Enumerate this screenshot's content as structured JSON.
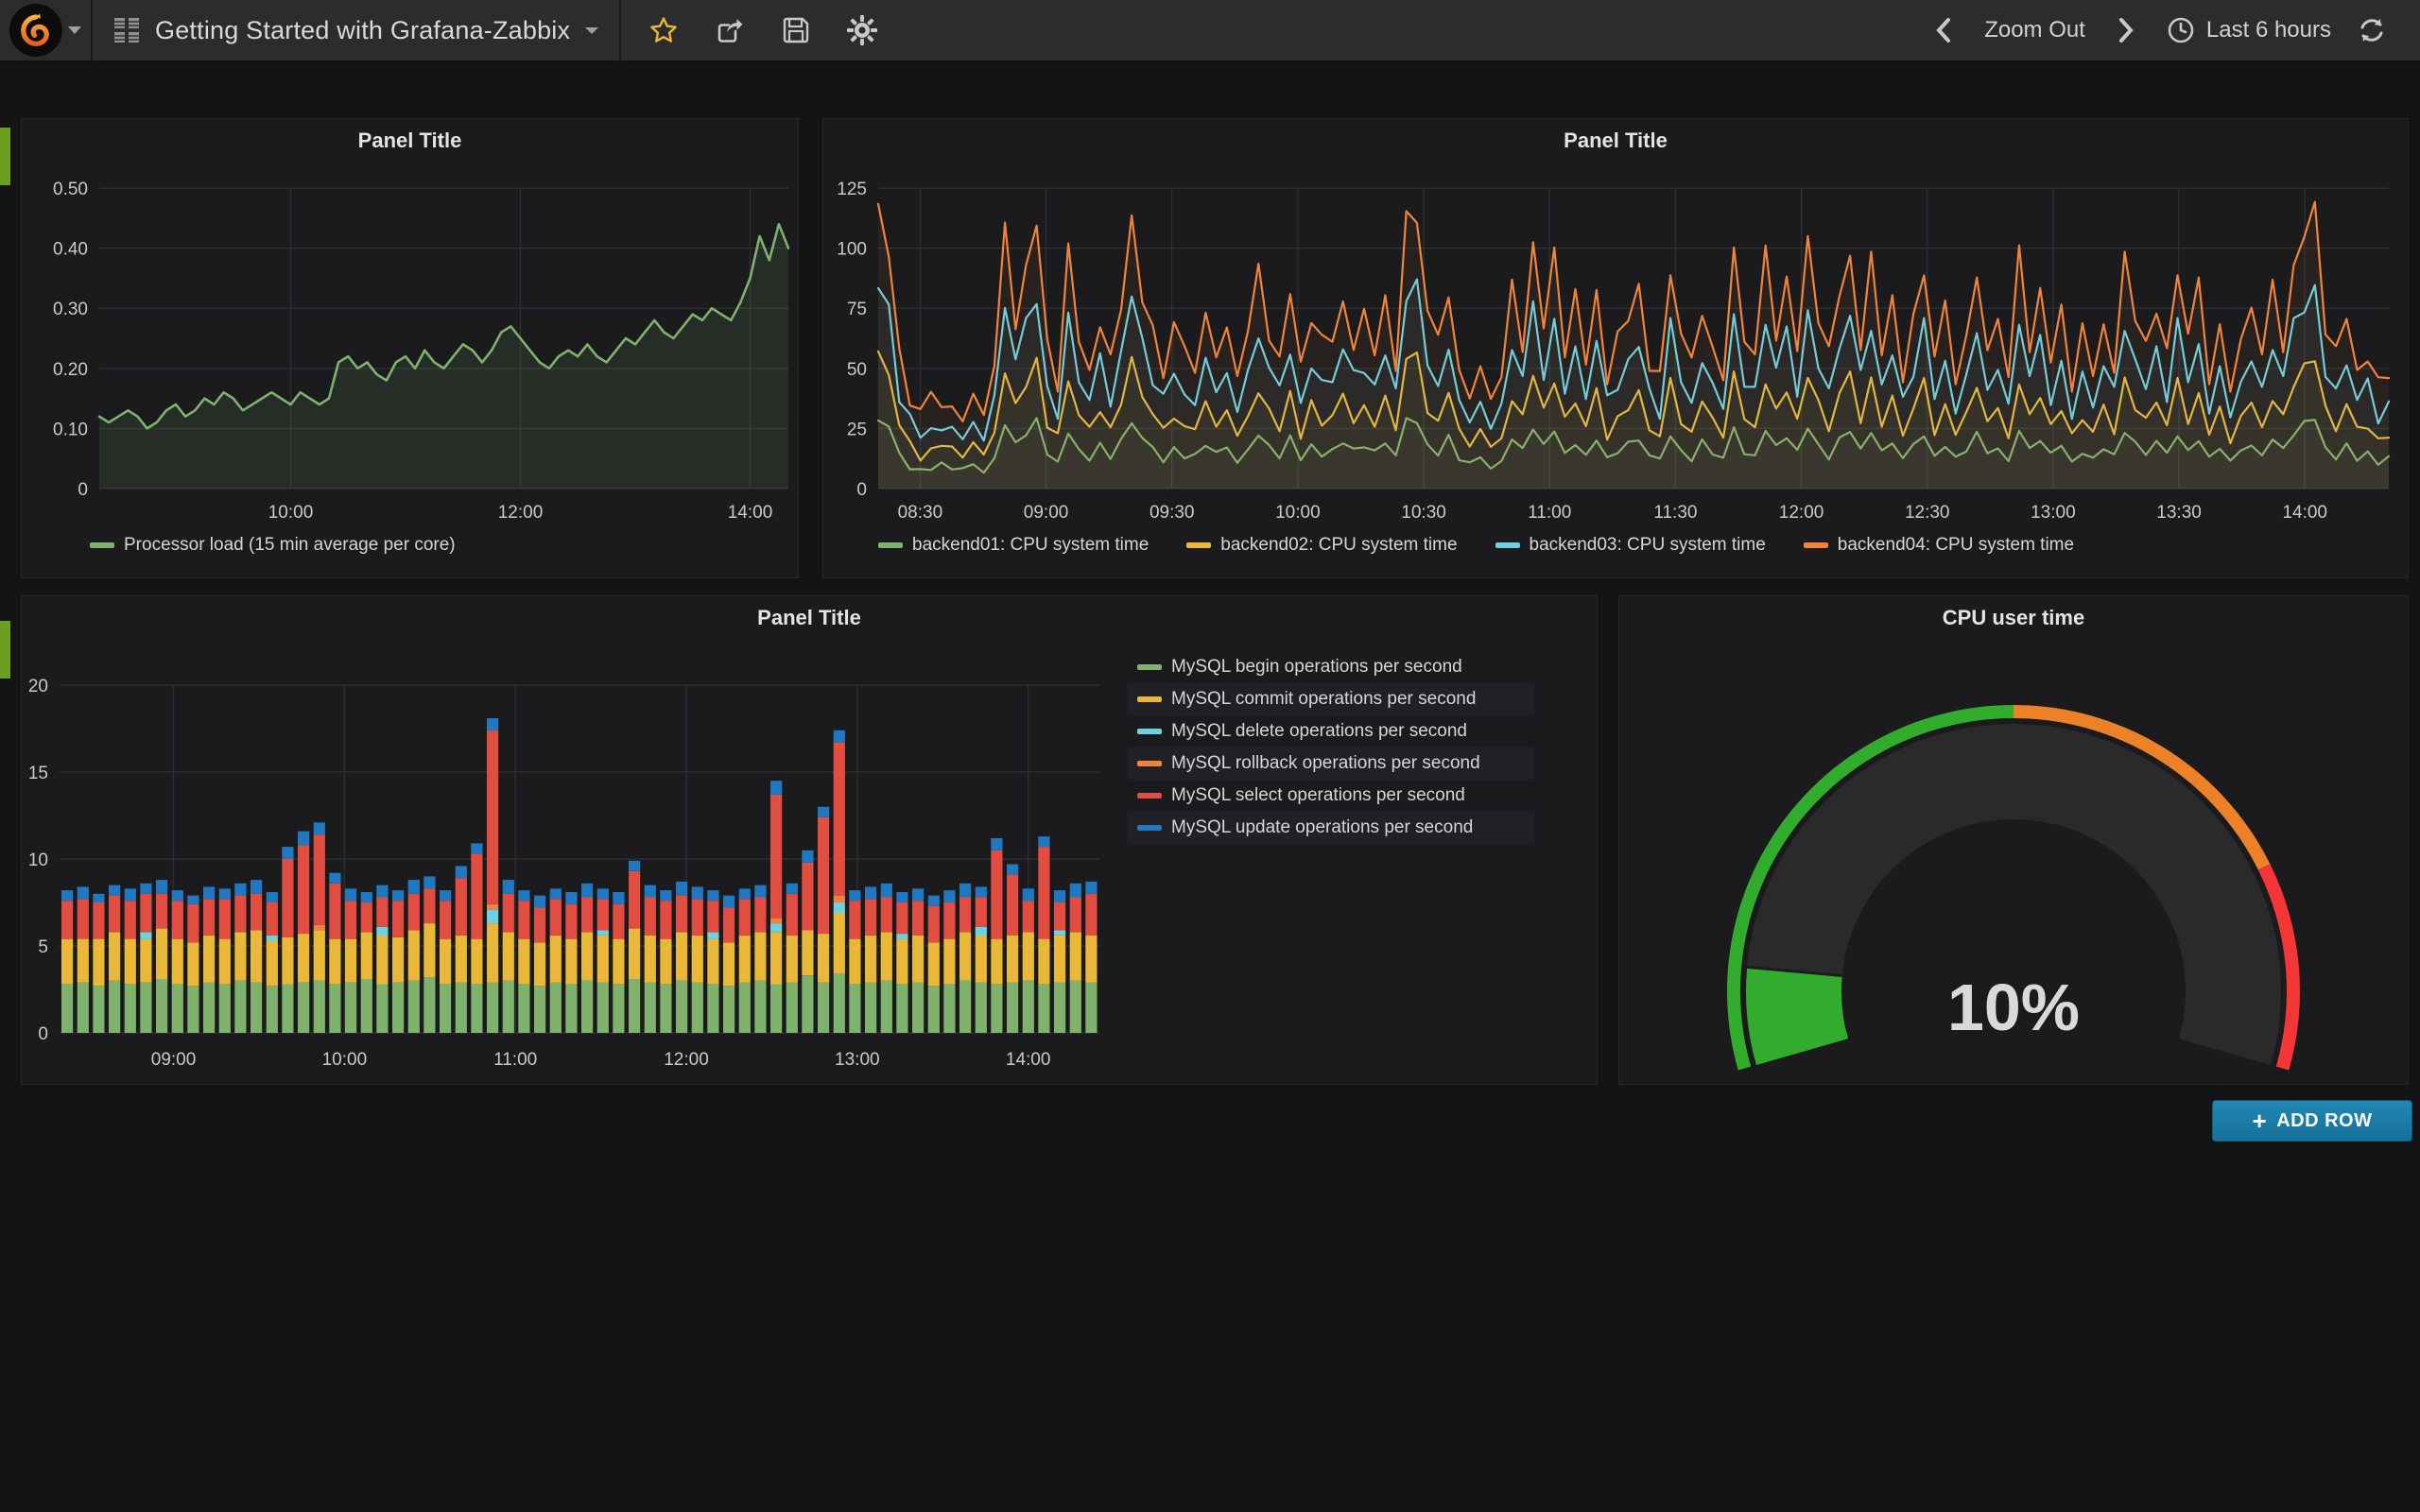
{
  "navbar": {
    "title": "Getting Started with Grafana-Zabbix",
    "zoom_out_label": "Zoom Out",
    "time_range_label": "Last 6 hours"
  },
  "add_row": {
    "plus": "+",
    "label": "ADD ROW"
  },
  "colors": {
    "green": "#7EB26D",
    "yellow": "#EAB839",
    "cyan": "#6ED0E0",
    "orange": "#EF843C",
    "red": "#E24D42",
    "blue": "#1F78C1",
    "gauge_green": "#32AC2D",
    "gauge_orange": "#ED8128",
    "gauge_red": "#F53636",
    "star": "#EAB839",
    "row_strip": "#6C9E1F",
    "add_row_bg": "#1F7DA5"
  },
  "panel1": {
    "title": "Panel Title",
    "y_ticks": [
      "0.50",
      "0.40",
      "0.30",
      "0.20",
      "0.10",
      "0"
    ],
    "x_ticks": [
      "10:00",
      "12:00",
      "14:00"
    ],
    "legend": [
      {
        "label": "Processor load (15 min average per core)",
        "color": "#7EB26D"
      }
    ]
  },
  "panel2": {
    "title": "Panel Title",
    "y_ticks": [
      "125",
      "100",
      "75",
      "50",
      "25",
      "0"
    ],
    "x_ticks": [
      "08:30",
      "09:00",
      "09:30",
      "10:00",
      "10:30",
      "11:00",
      "11:30",
      "12:00",
      "12:30",
      "13:00",
      "13:30",
      "14:00"
    ],
    "legend": [
      {
        "label": "backend01: CPU system time",
        "color": "#7EB26D"
      },
      {
        "label": "backend02: CPU system time",
        "color": "#EAB839"
      },
      {
        "label": "backend03: CPU system time",
        "color": "#6ED0E0"
      },
      {
        "label": "backend04: CPU system time",
        "color": "#EF843C"
      }
    ]
  },
  "panel3": {
    "title": "Panel Title",
    "y_ticks": [
      "20",
      "15",
      "10",
      "5",
      "0"
    ],
    "x_ticks": [
      "09:00",
      "10:00",
      "11:00",
      "12:00",
      "13:00",
      "14:00"
    ],
    "legend": [
      {
        "label": "MySQL begin operations per second",
        "color": "#7EB26D"
      },
      {
        "label": "MySQL commit operations per second",
        "color": "#EAB839"
      },
      {
        "label": "MySQL delete operations per second",
        "color": "#6ED0E0"
      },
      {
        "label": "MySQL rollback operations per second",
        "color": "#EF843C"
      },
      {
        "label": "MySQL select operations per second",
        "color": "#E24D42"
      },
      {
        "label": "MySQL update operations per second",
        "color": "#1F78C1"
      }
    ]
  },
  "panel4": {
    "title": "CPU user time",
    "value_text": "10%"
  },
  "chart_data": [
    {
      "type": "line",
      "id": "processor_load",
      "title": "Panel Title",
      "ylim": [
        0,
        0.5
      ],
      "y_tick_values": [
        0.5,
        0.4,
        0.3,
        0.2,
        0.1,
        0
      ],
      "x_start_min": 500,
      "x_end_min": 860,
      "x_tick_minutes": [
        600,
        720,
        840
      ],
      "legend_position": "bottom",
      "grid": true,
      "series": [
        {
          "name": "Processor load (15 min average per core)",
          "color": "#7EB26D",
          "values": [
            0.12,
            0.11,
            0.12,
            0.13,
            0.12,
            0.1,
            0.11,
            0.13,
            0.14,
            0.12,
            0.13,
            0.15,
            0.14,
            0.16,
            0.15,
            0.13,
            0.14,
            0.15,
            0.16,
            0.15,
            0.14,
            0.16,
            0.15,
            0.14,
            0.15,
            0.21,
            0.22,
            0.2,
            0.21,
            0.19,
            0.18,
            0.21,
            0.22,
            0.2,
            0.23,
            0.21,
            0.2,
            0.22,
            0.24,
            0.23,
            0.21,
            0.23,
            0.26,
            0.27,
            0.25,
            0.23,
            0.21,
            0.2,
            0.22,
            0.23,
            0.22,
            0.24,
            0.22,
            0.21,
            0.23,
            0.25,
            0.24,
            0.26,
            0.28,
            0.26,
            0.25,
            0.27,
            0.29,
            0.28,
            0.3,
            0.29,
            0.28,
            0.31,
            0.35,
            0.42,
            0.38,
            0.44,
            0.4
          ]
        }
      ]
    },
    {
      "type": "line",
      "id": "cpu_system_time",
      "title": "Panel Title",
      "ylim": [
        0,
        125
      ],
      "y_tick_values": [
        125,
        100,
        75,
        50,
        25,
        0
      ],
      "x_start_min": 500,
      "x_end_min": 860,
      "x_tick_minutes": [
        510,
        540,
        570,
        600,
        630,
        660,
        690,
        720,
        750,
        780,
        810,
        840
      ],
      "legend_position": "bottom",
      "grid": true,
      "activity": [
        1.0,
        0.85,
        0.35,
        0.18,
        0.12,
        0.15,
        0.2,
        0.14,
        0.12,
        0.16,
        0.13,
        0.3,
        0.9,
        0.55,
        0.75,
        0.95,
        0.4,
        0.25,
        0.8,
        0.45,
        0.3,
        0.55,
        0.35,
        0.6,
        0.95,
        0.65,
        0.45,
        0.3,
        0.5,
        0.35,
        0.35,
        0.55,
        0.4,
        0.45,
        0.3,
        0.45,
        0.72,
        0.5,
        0.35,
        0.65,
        0.3,
        0.55,
        0.4,
        0.45,
        0.6,
        0.45,
        0.55,
        0.4,
        0.6,
        0.35,
        0.95,
        0.98,
        0.55,
        0.4,
        0.68,
        0.3,
        0.22,
        0.28,
        0.2,
        0.25,
        0.65,
        0.45,
        0.85,
        0.5,
        0.8,
        0.4,
        0.6,
        0.35,
        0.65,
        0.3,
        0.45,
        0.55,
        0.65,
        0.35,
        0.25,
        0.75,
        0.45,
        0.3,
        0.6,
        0.4,
        0.3,
        0.8,
        0.45,
        0.35,
        0.8,
        0.5,
        0.7,
        0.4,
        0.85,
        0.55,
        0.35,
        0.65,
        0.8,
        0.45,
        0.8,
        0.4,
        0.6,
        0.3,
        0.5,
        0.75,
        0.35,
        0.55,
        0.3,
        0.45,
        0.75,
        0.35,
        0.55,
        0.25,
        0.8,
        0.45,
        0.65,
        0.35,
        0.55,
        0.25,
        0.45,
        0.3,
        0.5,
        0.35,
        0.8,
        0.55,
        0.4,
        0.6,
        0.35,
        0.75,
        0.45,
        0.65,
        0.3,
        0.5,
        0.25,
        0.4,
        0.6,
        0.35,
        0.65,
        0.45,
        0.75,
        0.9,
        1.0,
        0.5,
        0.35,
        0.55,
        0.3,
        0.4,
        0.25,
        0.3
      ],
      "jitter": [
        0.04,
        -0.05,
        0.06,
        -0.03,
        0.02,
        0.07,
        -0.06,
        0.01,
        -0.04,
        0.05,
        -0.02,
        0.03,
        0.06,
        -0.07,
        0.02,
        -0.01,
        0.05,
        -0.04,
        0.07,
        -0.02,
        0.01,
        -0.06,
        0.03,
        -0.03
      ],
      "series": [
        {
          "name": "backend01: CPU system time",
          "color": "#7EB26D",
          "base": 5,
          "range": 24,
          "phase": 3
        },
        {
          "name": "backend02: CPU system time",
          "color": "#EAB839",
          "base": 9,
          "range": 46,
          "phase": 9
        },
        {
          "name": "backend03: CPU system time",
          "color": "#6ED0E0",
          "base": 14,
          "range": 70,
          "phase": 15
        },
        {
          "name": "backend04: CPU system time",
          "color": "#EF843C",
          "base": 20,
          "range": 95,
          "phase": 0
        }
      ]
    },
    {
      "type": "stacked_bar",
      "id": "mysql_ops",
      "title": "Panel Title",
      "ylim": [
        0,
        20
      ],
      "y_tick_values": [
        20,
        15,
        10,
        5,
        0
      ],
      "x_start_min": 500,
      "x_end_min": 865,
      "x_tick_minutes": [
        540,
        600,
        660,
        720,
        780,
        840
      ],
      "legend_position": "right",
      "grid": true,
      "stack_order": [
        "begin",
        "commit",
        "del",
        "rollback",
        "select",
        "update_caps"
      ],
      "series_colors": {
        "begin": "#7EB26D",
        "commit": "#EAB839",
        "del": "#6ED0E0",
        "rollback": "#EF843C",
        "select": "#E24D42",
        "update_caps": "#1F78C1"
      },
      "begin": [
        2.8,
        2.9,
        2.7,
        3.0,
        2.8,
        2.9,
        3.1,
        2.8,
        2.7,
        2.9,
        2.8,
        3.0,
        2.9,
        2.7,
        2.8,
        2.9,
        3.0,
        2.8,
        2.9,
        3.1,
        2.8,
        2.9,
        3.0,
        3.2,
        2.8,
        2.9,
        2.8,
        2.9,
        3.0,
        2.8,
        2.7,
        2.9,
        2.8,
        3.0,
        2.9,
        2.8,
        3.1,
        2.9,
        2.8,
        3.0,
        2.9,
        2.8,
        2.7,
        2.9,
        3.0,
        2.8,
        2.9,
        3.3,
        2.9,
        3.4,
        2.8,
        2.9,
        3.0,
        2.8,
        2.9,
        2.7,
        2.8,
        3.0,
        2.9,
        2.8,
        2.9,
        3.0,
        2.8,
        2.9,
        3.0,
        2.9
      ],
      "commit": [
        2.6,
        2.5,
        2.7,
        2.8,
        2.6,
        2.5,
        2.9,
        2.6,
        2.5,
        2.7,
        2.6,
        2.8,
        3.0,
        2.6,
        2.7,
        2.8,
        2.9,
        2.6,
        2.5,
        2.7,
        2.8,
        2.6,
        2.9,
        3.1,
        2.6,
        2.7,
        2.6,
        3.4,
        2.8,
        2.6,
        2.5,
        2.7,
        2.6,
        2.8,
        2.7,
        2.6,
        2.9,
        2.7,
        2.6,
        2.8,
        2.7,
        2.6,
        2.5,
        2.7,
        2.8,
        3.0,
        2.7,
        2.6,
        2.8,
        3.5,
        2.6,
        2.7,
        2.8,
        2.6,
        2.7,
        2.5,
        2.6,
        2.8,
        2.7,
        2.6,
        2.7,
        2.8,
        2.6,
        2.7,
        2.8,
        2.7
      ],
      "del": [
        0,
        0,
        0,
        0,
        0,
        0.4,
        0,
        0,
        0,
        0,
        0,
        0,
        0,
        0.3,
        0,
        0,
        0,
        0,
        0,
        0,
        0.5,
        0,
        0,
        0,
        0,
        0,
        0,
        0.8,
        0,
        0,
        0,
        0,
        0,
        0,
        0.3,
        0,
        0,
        0,
        0,
        0,
        0,
        0.4,
        0,
        0,
        0,
        0.5,
        0,
        0,
        0,
        0.6,
        0,
        0,
        0,
        0.3,
        0,
        0,
        0,
        0,
        0.5,
        0,
        0,
        0,
        0,
        0.3,
        0,
        0
      ],
      "rollback": [
        0,
        0,
        0,
        0,
        0,
        0,
        0,
        0,
        0,
        0,
        0,
        0,
        0,
        0,
        0,
        0,
        0.3,
        0,
        0,
        0,
        0,
        0,
        0,
        0,
        0,
        0,
        0,
        0.3,
        0,
        0,
        0,
        0,
        0,
        0,
        0,
        0,
        0,
        0,
        0,
        0,
        0,
        0,
        0,
        0,
        0,
        0.3,
        0,
        0,
        0,
        0.4,
        0,
        0,
        0,
        0,
        0,
        0,
        0,
        0,
        0,
        0,
        0,
        0,
        0,
        0,
        0,
        0
      ],
      "update_caps": [
        0.6,
        0.7,
        0.5,
        0.6,
        0.7,
        0.6,
        0.8,
        0.6,
        0.5,
        0.7,
        0.6,
        0.7,
        0.8,
        0.6,
        0.7,
        0.8,
        0.7,
        0.6,
        0.7,
        0.6,
        0.7,
        0.6,
        0.8,
        0.7,
        0.6,
        0.7,
        0.6,
        0.7,
        0.8,
        0.6,
        0.7,
        0.6,
        0.7,
        0.8,
        0.6,
        0.7,
        0.6,
        0.7,
        0.6,
        0.8,
        0.7,
        0.6,
        0.7,
        0.6,
        0.7,
        0.8,
        0.6,
        0.7,
        0.6,
        0.7,
        0.6,
        0.7,
        0.8,
        0.6,
        0.7,
        0.6,
        0.7,
        0.8,
        0.6,
        0.7,
        0.6,
        0.7,
        0.6,
        0.7,
        0.8,
        0.7
      ],
      "totals": [
        8.2,
        8.4,
        8.0,
        8.5,
        8.3,
        8.6,
        8.8,
        8.2,
        7.9,
        8.4,
        8.3,
        8.6,
        8.8,
        8.1,
        10.7,
        11.6,
        12.1,
        9.2,
        8.3,
        8.1,
        8.5,
        8.2,
        8.8,
        9.0,
        8.2,
        9.6,
        10.9,
        18.1,
        8.8,
        8.2,
        7.9,
        8.3,
        8.1,
        8.6,
        8.3,
        8.1,
        9.9,
        8.5,
        8.2,
        8.7,
        8.4,
        8.2,
        7.9,
        8.3,
        8.5,
        14.5,
        8.6,
        10.5,
        13.0,
        17.4,
        8.2,
        8.4,
        8.6,
        8.1,
        8.3,
        7.9,
        8.2,
        8.6,
        8.4,
        11.2,
        9.7,
        8.3,
        11.3,
        8.2,
        8.6,
        8.7
      ],
      "select_rule": "totals_minus_other_series"
    },
    {
      "type": "gauge",
      "id": "cpu_user_time",
      "title": "CPU user time",
      "value": 10,
      "min": 0,
      "max": 100,
      "unit": "%",
      "thresholds": [
        {
          "upto": 50,
          "color": "#32AC2D"
        },
        {
          "upto": 80,
          "color": "#ED8128"
        },
        {
          "upto": 100,
          "color": "#F53636"
        }
      ]
    }
  ]
}
